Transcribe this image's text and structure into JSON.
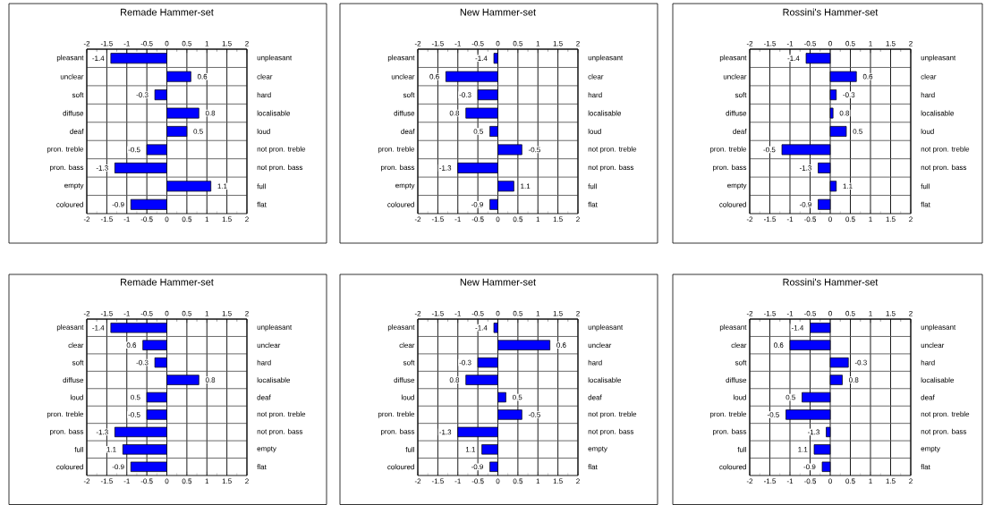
{
  "chart_data": [
    {
      "type": "bar",
      "orientation": "horizontal",
      "title": "Remade Hammer-set",
      "categories": [
        "pleasant",
        "unclear",
        "soft",
        "diffuse",
        "deaf",
        "pron. treble",
        "pron. bass",
        "empty",
        "coloured"
      ],
      "y2_categories": [
        "unpleasant",
        "clear",
        "hard",
        "localisable",
        "loud",
        "not pron. treble",
        "not pron. bass",
        "full",
        "flat"
      ],
      "values": [
        -1.4,
        0.6,
        -0.3,
        0.8,
        0.5,
        -0.5,
        -1.3,
        1.1,
        -0.9
      ],
      "value_labels": [
        "-1.4",
        "0.6",
        "-0.3",
        "0.8",
        "0.5",
        "-0.5",
        "-1.3",
        "1.1",
        "-0.9"
      ],
      "color": "#0000ff",
      "xlim": [
        -2,
        2
      ],
      "xticks": [
        -2,
        -1.5,
        -1,
        -0.5,
        0,
        0.5,
        1,
        1.5,
        2
      ],
      "x2lim": [
        -2,
        2
      ],
      "x2ticks": [
        -2,
        -1.5,
        -1,
        -0.5,
        0,
        0.5,
        1,
        1.5,
        2
      ],
      "grid": true
    },
    {
      "type": "bar",
      "orientation": "horizontal",
      "title": "New Hammer-set",
      "categories": [
        "pleasant",
        "unclear",
        "soft",
        "diffuse",
        "deaf",
        "pron. treble",
        "pron. bass",
        "empty",
        "coloured"
      ],
      "y2_categories": [
        "unpleasant",
        "clear",
        "hard",
        "localisable",
        "loud",
        "not pron. treble",
        "not pron. bass",
        "full",
        "flat"
      ],
      "values": [
        -0.1,
        -1.3,
        -0.5,
        -0.8,
        -0.2,
        0.6,
        -1.0,
        0.4,
        -0.2
      ],
      "annotations": [
        "-1.4",
        "0.6",
        "-0.3",
        "0.8",
        "0.5",
        "-0.5",
        "-1.3",
        "1.1",
        "-0.9"
      ],
      "color": "#0000ff",
      "xlim": [
        -2,
        2
      ],
      "xticks": [
        -2,
        -1.5,
        -1,
        -0.5,
        0,
        0.5,
        1,
        1.5,
        2
      ],
      "x2lim": [
        -2,
        2
      ],
      "x2ticks": [
        -2,
        -1.5,
        -1,
        -0.5,
        0,
        0.5,
        1,
        1.5,
        2
      ],
      "grid": true
    },
    {
      "type": "bar",
      "orientation": "horizontal",
      "title": "Rossini's Hammer-set",
      "categories": [
        "pleasant",
        "unclear",
        "soft",
        "diffuse",
        "deaf",
        "pron. treble",
        "pron. bass",
        "empty",
        "coloured"
      ],
      "y2_categories": [
        "unpleasant",
        "clear",
        "hard",
        "localisable",
        "loud",
        "not pron. treble",
        "not pron. bass",
        "full",
        "flat"
      ],
      "values": [
        -0.6,
        0.65,
        0.15,
        0.07,
        0.4,
        -1.2,
        -0.3,
        0.15,
        -0.3
      ],
      "annotations": [
        "-1.4",
        "0.6",
        "-0.3",
        "0.8",
        "0.5",
        "-0.5",
        "-1.3",
        "1.1",
        "-0.9"
      ],
      "color": "#0000ff",
      "xlim": [
        -2,
        2
      ],
      "xticks": [
        -2,
        -1.5,
        -1,
        -0.5,
        0,
        0.5,
        1,
        1.5,
        2
      ],
      "x2lim": [
        -2,
        2
      ],
      "x2ticks": [
        -2,
        -1.5,
        -1,
        -0.5,
        0,
        0.5,
        1,
        1.5,
        2
      ],
      "grid": true
    },
    {
      "type": "bar",
      "orientation": "horizontal",
      "title": "Remade Hammer-set",
      "categories": [
        "pleasant",
        "clear",
        "soft",
        "diffuse",
        "loud",
        "pron. treble",
        "pron. bass",
        "full",
        "coloured"
      ],
      "y2_categories": [
        "unpleasant",
        "unclear",
        "hard",
        "localisable",
        "deaf",
        "not pron. treble",
        "not pron. bass",
        "empty",
        "flat"
      ],
      "values": [
        -1.4,
        -0.6,
        -0.3,
        0.8,
        -0.5,
        -0.5,
        -1.3,
        -1.1,
        -0.9
      ],
      "annotations": [
        "-1.4",
        "0.6",
        "-0.3",
        "0.8",
        "0.5",
        "-0.5",
        "-1.3",
        "1.1",
        "-0.9"
      ],
      "color": "#0000ff",
      "xlim": [
        -2,
        2
      ],
      "xticks": [
        -2,
        -1.5,
        -1,
        -0.5,
        0,
        0.5,
        1,
        1.5,
        2
      ],
      "x2lim": [
        -2,
        2
      ],
      "x2ticks": [
        -2,
        -1.5,
        -1,
        -0.5,
        0,
        0.5,
        1,
        1.5,
        2
      ],
      "grid": true
    },
    {
      "type": "bar",
      "orientation": "horizontal",
      "title": "New Hammer-set",
      "categories": [
        "pleasant",
        "clear",
        "soft",
        "diffuse",
        "loud",
        "pron. treble",
        "pron. bass",
        "full",
        "coloured"
      ],
      "y2_categories": [
        "unpleasant",
        "unclear",
        "hard",
        "localisable",
        "deaf",
        "not pron. treble",
        "not pron. bass",
        "empty",
        "flat"
      ],
      "values": [
        -0.1,
        1.3,
        -0.5,
        -0.8,
        0.2,
        0.6,
        -1.0,
        -0.4,
        -0.2
      ],
      "annotations": [
        "-1.4",
        "0.6",
        "-0.3",
        "0.8",
        "0.5",
        "-0.5",
        "-1.3",
        "1.1",
        "-0.9"
      ],
      "color": "#0000ff",
      "xlim": [
        -2,
        2
      ],
      "xticks": [
        -2,
        -1.5,
        -1,
        -0.5,
        0,
        0.5,
        1,
        1.5,
        2
      ],
      "x2lim": [
        -2,
        2
      ],
      "x2ticks": [
        -2,
        -1.5,
        -1,
        -0.5,
        0,
        0.5,
        1,
        1.5,
        2
      ],
      "grid": true
    },
    {
      "type": "bar",
      "orientation": "horizontal",
      "title": "Rossini's Hammer-set",
      "categories": [
        "pleasant",
        "clear",
        "soft",
        "diffuse",
        "loud",
        "pron. treble",
        "pron. bass",
        "full",
        "coloured"
      ],
      "y2_categories": [
        "unpleasant",
        "unclear",
        "hard",
        "localisable",
        "deaf",
        "not pron. treble",
        "not pron. bass",
        "empty",
        "flat"
      ],
      "values": [
        -0.5,
        -1.0,
        0.45,
        0.3,
        -0.7,
        -1.1,
        -0.1,
        -0.4,
        -0.2
      ],
      "annotations": [
        "-1.4",
        "0.6",
        "-0.3",
        "0.8",
        "0.5",
        "-0.5",
        "-1.3",
        "1.1",
        "-0.9"
      ],
      "color": "#0000ff",
      "xlim": [
        -2,
        2
      ],
      "xticks": [
        -2,
        -1.5,
        -1,
        -0.5,
        0,
        0.5,
        1,
        1.5,
        2
      ],
      "x2lim": [
        -2,
        2
      ],
      "x2ticks": [
        -2,
        -1.5,
        -1,
        -0.5,
        0,
        0.5,
        1,
        1.5,
        2
      ],
      "grid": true
    }
  ]
}
